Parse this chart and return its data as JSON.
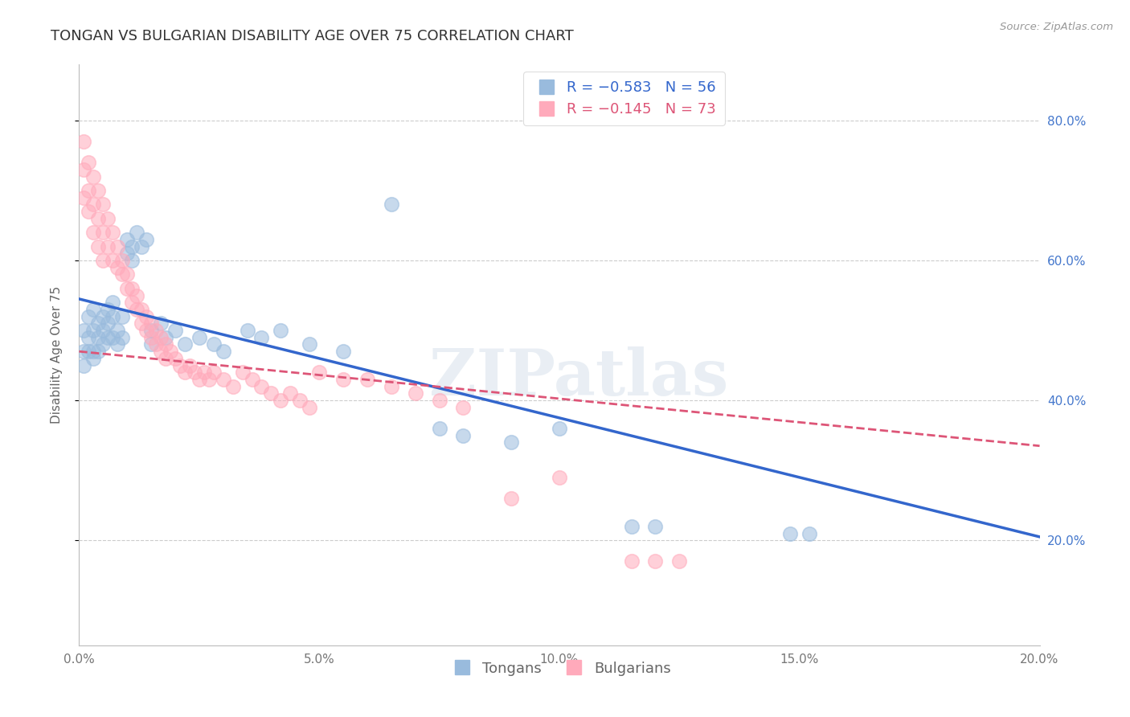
{
  "title": "TONGAN VS BULGARIAN DISABILITY AGE OVER 75 CORRELATION CHART",
  "source": "Source: ZipAtlas.com",
  "ylabel": "Disability Age Over 75",
  "xlim": [
    0.0,
    0.2
  ],
  "ylim": [
    0.05,
    0.88
  ],
  "right_yticks": [
    0.2,
    0.4,
    0.6,
    0.8
  ],
  "right_yticklabels": [
    "20.0%",
    "40.0%",
    "60.0%",
    "80.0%"
  ],
  "xticks": [
    0.0,
    0.05,
    0.1,
    0.15,
    0.2
  ],
  "xticklabels": [
    "0.0%",
    "5.0%",
    "10.0%",
    "15.0%",
    "20.0%"
  ],
  "legend_blue_r": "R = −0.583",
  "legend_blue_n": "N = 56",
  "legend_pink_r": "R = −0.145",
  "legend_pink_n": "N = 73",
  "blue_scatter_color": "#99BBDD",
  "pink_scatter_color": "#FFAABB",
  "blue_line_color": "#3366CC",
  "pink_line_color": "#DD5577",
  "watermark": "ZIPatlas",
  "blue_line": [
    [
      0.0,
      0.545
    ],
    [
      0.2,
      0.205
    ]
  ],
  "pink_line": [
    [
      0.0,
      0.47
    ],
    [
      0.2,
      0.335
    ]
  ],
  "blue_points": [
    [
      0.001,
      0.5
    ],
    [
      0.001,
      0.47
    ],
    [
      0.001,
      0.45
    ],
    [
      0.002,
      0.52
    ],
    [
      0.002,
      0.49
    ],
    [
      0.002,
      0.47
    ],
    [
      0.003,
      0.53
    ],
    [
      0.003,
      0.5
    ],
    [
      0.003,
      0.47
    ],
    [
      0.003,
      0.46
    ],
    [
      0.004,
      0.51
    ],
    [
      0.004,
      0.49
    ],
    [
      0.004,
      0.47
    ],
    [
      0.005,
      0.52
    ],
    [
      0.005,
      0.5
    ],
    [
      0.005,
      0.48
    ],
    [
      0.006,
      0.53
    ],
    [
      0.006,
      0.51
    ],
    [
      0.006,
      0.49
    ],
    [
      0.007,
      0.54
    ],
    [
      0.007,
      0.52
    ],
    [
      0.007,
      0.49
    ],
    [
      0.008,
      0.5
    ],
    [
      0.008,
      0.48
    ],
    [
      0.009,
      0.52
    ],
    [
      0.009,
      0.49
    ],
    [
      0.01,
      0.63
    ],
    [
      0.01,
      0.61
    ],
    [
      0.011,
      0.62
    ],
    [
      0.011,
      0.6
    ],
    [
      0.012,
      0.64
    ],
    [
      0.013,
      0.62
    ],
    [
      0.014,
      0.63
    ],
    [
      0.015,
      0.5
    ],
    [
      0.015,
      0.48
    ],
    [
      0.017,
      0.51
    ],
    [
      0.018,
      0.49
    ],
    [
      0.02,
      0.5
    ],
    [
      0.022,
      0.48
    ],
    [
      0.025,
      0.49
    ],
    [
      0.028,
      0.48
    ],
    [
      0.03,
      0.47
    ],
    [
      0.035,
      0.5
    ],
    [
      0.038,
      0.49
    ],
    [
      0.042,
      0.5
    ],
    [
      0.048,
      0.48
    ],
    [
      0.055,
      0.47
    ],
    [
      0.065,
      0.68
    ],
    [
      0.075,
      0.36
    ],
    [
      0.08,
      0.35
    ],
    [
      0.09,
      0.34
    ],
    [
      0.1,
      0.36
    ],
    [
      0.115,
      0.22
    ],
    [
      0.12,
      0.22
    ],
    [
      0.148,
      0.21
    ],
    [
      0.152,
      0.21
    ]
  ],
  "pink_points": [
    [
      0.001,
      0.77
    ],
    [
      0.001,
      0.73
    ],
    [
      0.001,
      0.69
    ],
    [
      0.002,
      0.74
    ],
    [
      0.002,
      0.7
    ],
    [
      0.002,
      0.67
    ],
    [
      0.003,
      0.72
    ],
    [
      0.003,
      0.68
    ],
    [
      0.003,
      0.64
    ],
    [
      0.004,
      0.7
    ],
    [
      0.004,
      0.66
    ],
    [
      0.004,
      0.62
    ],
    [
      0.005,
      0.68
    ],
    [
      0.005,
      0.64
    ],
    [
      0.005,
      0.6
    ],
    [
      0.006,
      0.66
    ],
    [
      0.006,
      0.62
    ],
    [
      0.007,
      0.64
    ],
    [
      0.007,
      0.6
    ],
    [
      0.008,
      0.62
    ],
    [
      0.008,
      0.59
    ],
    [
      0.009,
      0.6
    ],
    [
      0.009,
      0.58
    ],
    [
      0.01,
      0.58
    ],
    [
      0.01,
      0.56
    ],
    [
      0.011,
      0.56
    ],
    [
      0.011,
      0.54
    ],
    [
      0.012,
      0.55
    ],
    [
      0.012,
      0.53
    ],
    [
      0.013,
      0.53
    ],
    [
      0.013,
      0.51
    ],
    [
      0.014,
      0.52
    ],
    [
      0.014,
      0.5
    ],
    [
      0.015,
      0.51
    ],
    [
      0.015,
      0.49
    ],
    [
      0.016,
      0.5
    ],
    [
      0.016,
      0.48
    ],
    [
      0.017,
      0.49
    ],
    [
      0.017,
      0.47
    ],
    [
      0.018,
      0.48
    ],
    [
      0.018,
      0.46
    ],
    [
      0.019,
      0.47
    ],
    [
      0.02,
      0.46
    ],
    [
      0.021,
      0.45
    ],
    [
      0.022,
      0.44
    ],
    [
      0.023,
      0.45
    ],
    [
      0.024,
      0.44
    ],
    [
      0.025,
      0.43
    ],
    [
      0.026,
      0.44
    ],
    [
      0.027,
      0.43
    ],
    [
      0.028,
      0.44
    ],
    [
      0.03,
      0.43
    ],
    [
      0.032,
      0.42
    ],
    [
      0.034,
      0.44
    ],
    [
      0.036,
      0.43
    ],
    [
      0.038,
      0.42
    ],
    [
      0.04,
      0.41
    ],
    [
      0.042,
      0.4
    ],
    [
      0.044,
      0.41
    ],
    [
      0.046,
      0.4
    ],
    [
      0.048,
      0.39
    ],
    [
      0.05,
      0.44
    ],
    [
      0.055,
      0.43
    ],
    [
      0.06,
      0.43
    ],
    [
      0.065,
      0.42
    ],
    [
      0.07,
      0.41
    ],
    [
      0.075,
      0.4
    ],
    [
      0.08,
      0.39
    ],
    [
      0.09,
      0.26
    ],
    [
      0.1,
      0.29
    ],
    [
      0.115,
      0.17
    ],
    [
      0.12,
      0.17
    ],
    [
      0.125,
      0.17
    ]
  ],
  "grid_color": "#CCCCCC",
  "background_color": "#FFFFFF",
  "title_fontsize": 13,
  "axis_label_fontsize": 11,
  "tick_fontsize": 11,
  "legend_fontsize": 13
}
